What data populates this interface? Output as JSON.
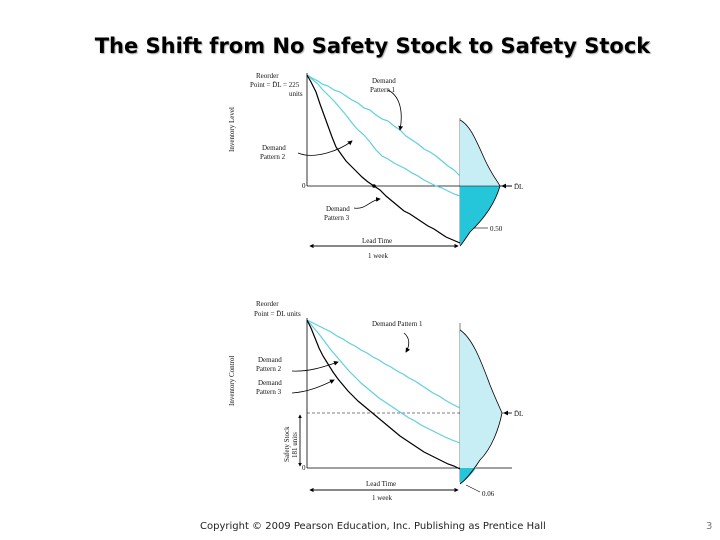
{
  "slide": {
    "title": "The Shift from No Safety Stock to Safety Stock",
    "footer": "Copyright © 2009 Pearson Education, Inc. Publishing as Prentice Hall",
    "page_number": "3"
  },
  "top_diagram": {
    "reorder_label": "Reorder",
    "reorder_point": "Point = D̄L = 225",
    "reorder_units": "units",
    "y_axis_label": "Inventory Level",
    "zero_label": "0",
    "demand_pattern_1": [
      "Demand",
      "Pattern 1"
    ],
    "demand_pattern_2": [
      "Demand",
      "Pattern 2"
    ],
    "demand_pattern_3": [
      "Demand",
      "Pattern 3"
    ],
    "lead_time": [
      "Lead Time",
      "1 week"
    ],
    "dl_label": "D̄L",
    "probability_label": "0.50"
  },
  "bottom_diagram": {
    "reorder_label": "Reorder",
    "reorder_point": "Point = D̄L units",
    "y_axis_label": "Inventory Control",
    "zero_label": "0",
    "demand_pattern_1": "Demand Pattern 1",
    "demand_pattern_2": [
      "Demand",
      "Pattern 2"
    ],
    "demand_pattern_3": [
      "Demand",
      "Pattern 3"
    ],
    "safety_stock": [
      "Safety Stock",
      "181 units"
    ],
    "lead_time": [
      "Lead Time",
      "1 week"
    ],
    "dl_label": "D̄L",
    "probability_label": "0.06"
  },
  "colors": {
    "demand_cyan": "#5ed0e0",
    "fill_light": "#c8eef5",
    "fill_dark": "#26c6da"
  }
}
